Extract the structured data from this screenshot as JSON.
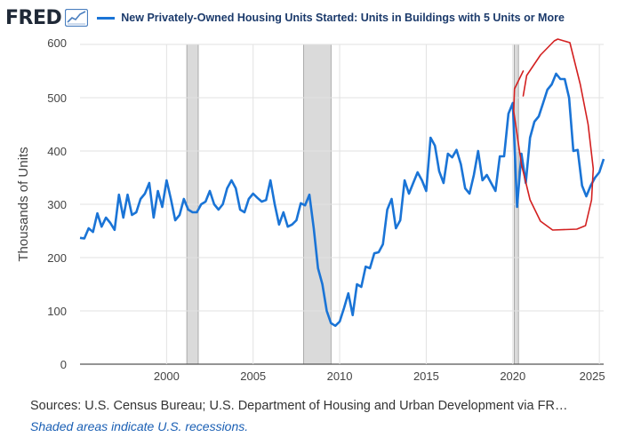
{
  "header": {
    "logo_text": "FRED",
    "logo_icon": "line-chart-icon"
  },
  "chart_data": {
    "type": "line",
    "title": "New Privately-Owned Housing Units Started: Units in Buildings with 5 Units or More",
    "ylabel": "Thousands of Units",
    "xlabel": "",
    "xlim": [
      1995.0,
      2025.25
    ],
    "ylim": [
      0,
      600
    ],
    "x_ticks": [
      "2000",
      "2005",
      "2010",
      "2015",
      "2020",
      "2025"
    ],
    "y_ticks": [
      "0",
      "100",
      "200",
      "300",
      "400",
      "500",
      "600"
    ],
    "grid": true,
    "legend_position": "top",
    "line_color": "#1a74d6",
    "recessions": [
      [
        2001.17,
        2001.83
      ],
      [
        2007.92,
        2009.5
      ],
      [
        2020.08,
        2020.33
      ]
    ],
    "series": [
      {
        "name": "New Privately-Owned Housing Units Started: Units in Buildings with 5 Units or More",
        "x": [
          1995.0,
          1995.25,
          1995.5,
          1995.75,
          1996.0,
          1996.25,
          1996.5,
          1996.75,
          1997.0,
          1997.25,
          1997.5,
          1997.75,
          1998.0,
          1998.25,
          1998.5,
          1998.75,
          1999.0,
          1999.25,
          1999.5,
          1999.75,
          2000.0,
          2000.25,
          2000.5,
          2000.75,
          2001.0,
          2001.25,
          2001.5,
          2001.75,
          2002.0,
          2002.25,
          2002.5,
          2002.75,
          2003.0,
          2003.25,
          2003.5,
          2003.75,
          2004.0,
          2004.25,
          2004.5,
          2004.75,
          2005.0,
          2005.25,
          2005.5,
          2005.75,
          2006.0,
          2006.25,
          2006.5,
          2006.75,
          2007.0,
          2007.25,
          2007.5,
          2007.75,
          2008.0,
          2008.25,
          2008.5,
          2008.75,
          2009.0,
          2009.25,
          2009.5,
          2009.75,
          2010.0,
          2010.25,
          2010.5,
          2010.75,
          2011.0,
          2011.25,
          2011.5,
          2011.75,
          2012.0,
          2012.25,
          2012.5,
          2012.75,
          2013.0,
          2013.25,
          2013.5,
          2013.75,
          2014.0,
          2014.25,
          2014.5,
          2014.75,
          2015.0,
          2015.25,
          2015.5,
          2015.75,
          2016.0,
          2016.25,
          2016.5,
          2016.75,
          2017.0,
          2017.25,
          2017.5,
          2017.75,
          2018.0,
          2018.25,
          2018.5,
          2018.75,
          2019.0,
          2019.25,
          2019.5,
          2019.75,
          2020.0,
          2020.25,
          2020.5,
          2020.75,
          2021.0,
          2021.25,
          2021.5,
          2021.75,
          2022.0,
          2022.25,
          2022.5,
          2022.75,
          2023.0,
          2023.25,
          2023.5,
          2023.75,
          2024.0,
          2024.25,
          2024.5,
          2024.75,
          2025.0,
          2025.25
        ],
        "values": [
          237,
          236,
          255,
          248,
          283,
          258,
          275,
          265,
          252,
          318,
          275,
          318,
          280,
          285,
          310,
          320,
          340,
          275,
          325,
          295,
          345,
          310,
          270,
          280,
          310,
          290,
          285,
          285,
          300,
          305,
          325,
          300,
          290,
          300,
          330,
          345,
          330,
          290,
          285,
          310,
          320,
          312,
          305,
          308,
          345,
          300,
          262,
          285,
          258,
          262,
          270,
          302,
          298,
          318,
          255,
          180,
          150,
          100,
          77,
          72,
          80,
          105,
          133,
          92,
          150,
          145,
          183,
          180,
          208,
          210,
          225,
          290,
          310,
          255,
          270,
          345,
          320,
          340,
          360,
          345,
          325,
          425,
          410,
          362,
          340,
          395,
          388,
          402,
          375,
          330,
          320,
          355,
          400,
          345,
          355,
          340,
          325,
          390,
          390,
          470,
          490,
          295,
          395,
          340,
          425,
          455,
          465,
          490,
          515,
          525,
          545,
          535,
          535,
          500,
          400,
          402,
          335,
          315,
          335,
          350,
          360,
          385
        ]
      }
    ],
    "annotation_color": "#d32020"
  },
  "footer": {
    "sources": "Sources: U.S. Census Bureau; U.S. Department of Housing and Urban Development via FR…",
    "note": "Shaded areas indicate U.S. recessions."
  }
}
